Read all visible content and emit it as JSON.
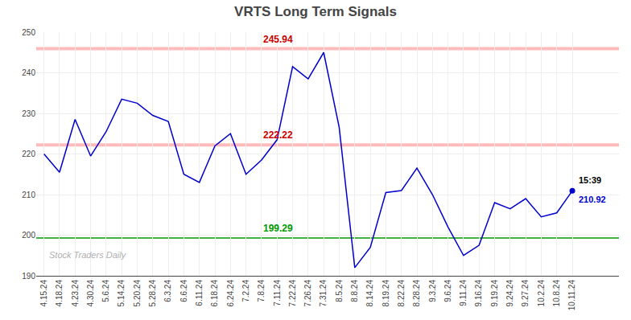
{
  "chart_data": {
    "type": "line",
    "title": "VRTS Long Term Signals",
    "categories": [
      "4.15.24",
      "4.18.24",
      "4.23.24",
      "4.30.24",
      "5.6.24",
      "5.14.24",
      "5.20.24",
      "5.28.24",
      "6.3.24",
      "6.6.24",
      "6.11.24",
      "6.18.24",
      "6.24.24",
      "7.2.24",
      "7.8.24",
      "7.11.24",
      "7.22.24",
      "7.26.24",
      "7.31.24",
      "8.5.24",
      "8.8.24",
      "8.14.24",
      "8.19.24",
      "8.22.24",
      "8.28.24",
      "9.3.24",
      "9.6.24",
      "9.11.24",
      "9.16.24",
      "9.19.24",
      "9.24.24",
      "9.27.24",
      "10.2.24",
      "10.8.24",
      "10.11.24"
    ],
    "values": [
      220.0,
      215.5,
      228.5,
      219.5,
      225.5,
      233.5,
      232.5,
      229.5,
      228.0,
      215.0,
      213.0,
      222.0,
      225.0,
      215.0,
      218.5,
      223.5,
      241.5,
      238.5,
      245.0,
      226.5,
      192.0,
      197.0,
      210.5,
      211.0,
      216.5,
      210.0,
      202.0,
      195.0,
      197.5,
      208.0,
      206.5,
      209.0,
      204.5,
      205.5,
      210.92
    ],
    "color": "#0000cc",
    "ylim": [
      190,
      250
    ],
    "yticks": [
      190,
      200,
      210,
      220,
      230,
      240,
      250
    ],
    "grid": true,
    "hlines": [
      {
        "value": 245.94,
        "label": "245.94",
        "color": "#cc0000",
        "band_color": "#ffbbbb"
      },
      {
        "value": 222.22,
        "label": "222.22",
        "color": "#cc0000",
        "band_color": "#ffbbbb"
      },
      {
        "value": 199.29,
        "label": "199.29",
        "color": "#009900"
      }
    ],
    "last_point": {
      "label": "15:39",
      "value_label": "210.92"
    },
    "watermark": {
      "text": "Stock Traders Daily",
      "color": "#b0b0b0"
    }
  }
}
